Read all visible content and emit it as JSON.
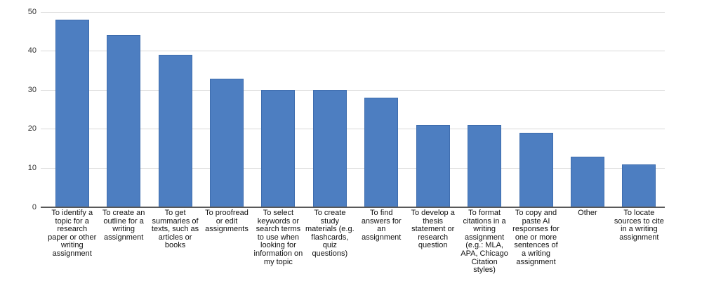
{
  "chart_data": {
    "type": "bar",
    "title": "",
    "categories": [
      "To identify a topic for a research paper or other writing assignment",
      "To create an outline for a writing assignment",
      "To get summaries of texts, such as articles or books",
      "To proofread or edit assignments",
      "To select keywords or search terms to use when looking for information on my topic",
      "To create study materials (e.g. flashcards, quiz questions)",
      "To find answers for an assignment",
      "To develop a thesis statement or research question",
      "To format citations in a writing assignment (e.g.: MLA, APA, Chicago Citation styles)",
      "To copy and paste AI responses for one or more sentences of a writing assignment",
      "Other",
      "To locate sources to cite in a writing assignment"
    ],
    "values": [
      48,
      44,
      39,
      33,
      30,
      30,
      28,
      21,
      21,
      19,
      13,
      11
    ],
    "xlabel": "",
    "ylabel": "",
    "ylim": [
      0,
      50
    ],
    "yticks": [
      0,
      10,
      20,
      30,
      40,
      50
    ],
    "grid": true,
    "legend_position": "none",
    "colors": {
      "bar_fill": "#4d7ec1",
      "bar_border": "#3e6dae",
      "gridline": "#d9d9d9",
      "axis_line": "#595959",
      "tick_label": "#333333",
      "category_label": "#111111",
      "background": "#ffffff"
    }
  }
}
